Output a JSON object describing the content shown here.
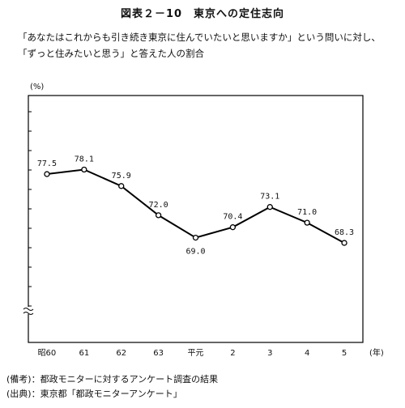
{
  "title": "図表２－10　東京への定住志向",
  "description": "「あなたはこれからも引き続き東京に住んでいたいと思いますか」という問いに対し、「ずっと住みたいと思う」と答えた人の割合",
  "notes": {
    "remark": "(備考)：都政モニターに対するアンケート調査の結果",
    "source": "(出典)：東京都「都政モニターアンケート」"
  },
  "chart_data": {
    "type": "line",
    "ylabel": "(%)",
    "xlabel": "(年)",
    "categories": [
      "昭60",
      "61",
      "62",
      "63",
      "平元",
      "2",
      "3",
      "4",
      "5"
    ],
    "values": [
      77.5,
      78.1,
      75.9,
      72.0,
      69.0,
      70.4,
      73.1,
      71.0,
      68.3
    ],
    "value_labels": [
      "77.5",
      "78.1",
      "75.9",
      "72.0",
      "69.0",
      "70.4",
      "73.1",
      "71.0",
      "68.3"
    ],
    "ylim": [
      55,
      88
    ],
    "axis_break": true,
    "grid": false,
    "line_color": "#000000",
    "marker": "open-circle"
  }
}
